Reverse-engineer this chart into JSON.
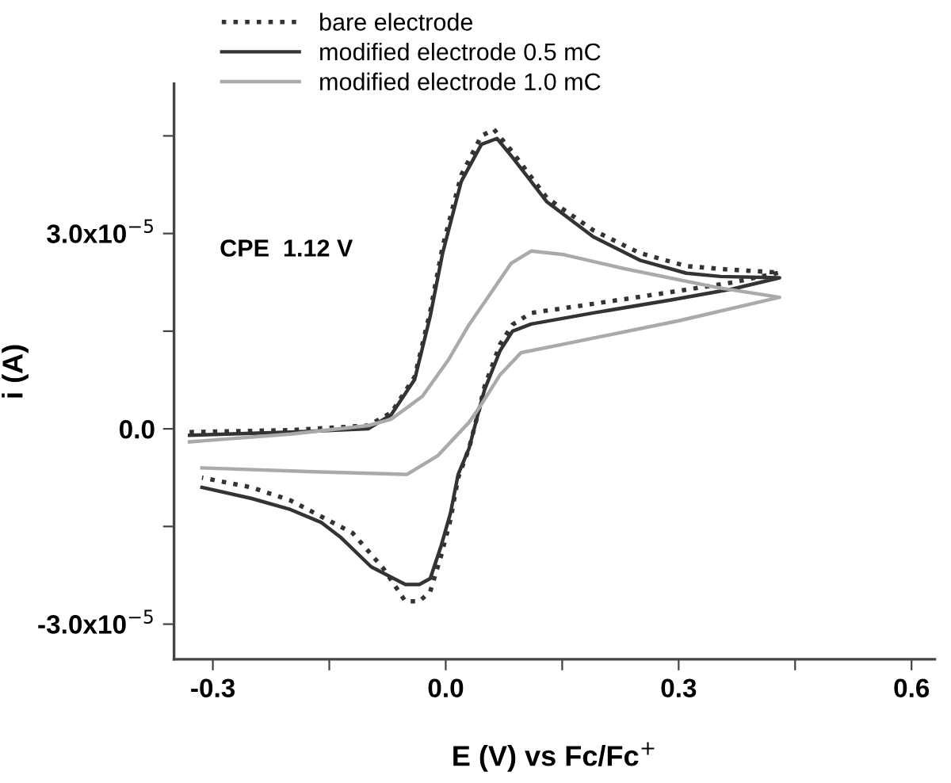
{
  "chart_data": {
    "type": "line",
    "xlabel": "E (V) vs Fc/Fc$^{+}$",
    "ylabel": "i (A)",
    "annotations": [
      "CPE  1.12 V"
    ],
    "xlim": [
      -0.35,
      0.63
    ],
    "ylim": [
      -3.54e-05,
      5.3e-05
    ],
    "xticks": [
      -0.3,
      {
        "value": -0.15,
        "label": null
      },
      {
        "value": 0,
        "label": "0.0"
      },
      {
        "value": 0.15,
        "label": null
      },
      0.3,
      {
        "value": 0.45,
        "label": null
      },
      0.6
    ],
    "yticks": [
      {
        "value": -3e-05,
        "label": "-3.0x10$^{−5}$"
      },
      {
        "value": -1.5e-05,
        "label": null
      },
      {
        "value": 0,
        "label": "0.0"
      },
      {
        "value": 1.5e-05,
        "label": null
      },
      {
        "value": 3e-05,
        "label": "3.0x10$^{−5}$"
      },
      {
        "value": 4.5e-05,
        "label": null
      }
    ],
    "grid": false,
    "legend": "top left",
    "marker": "none",
    "series": [
      {
        "name": "bare electrode",
        "color": "#333333",
        "line_style": "dotted",
        "x": [
          -0.33,
          -0.2,
          -0.1,
          -0.07,
          -0.04,
          -0.02,
          -0.004,
          0.02,
          0.046,
          0.062,
          0.086,
          0.13,
          0.19,
          0.25,
          0.31,
          0.36,
          0.43,
          0.37,
          0.29,
          0.19,
          0.11,
          0.086,
          0.07,
          0.05,
          0.044,
          0.03,
          0.016,
          0.006,
          -0.006,
          -0.02,
          -0.034,
          -0.052,
          -0.08,
          -0.12,
          -0.16,
          -0.2,
          -0.25,
          -0.314
        ],
        "values": [
          -5e-07,
          -2e-07,
          5e-07,
          2.5e-06,
          8e-06,
          1.8e-05,
          2.8e-05,
          3.9e-05,
          4.5e-05,
          4.6e-05,
          4.25e-05,
          3.55e-05,
          3.05e-05,
          2.7e-05,
          2.5e-05,
          2.45e-05,
          2.4e-05,
          2.25e-05,
          2.1e-05,
          1.92e-05,
          1.78e-05,
          1.6e-05,
          1.3e-05,
          6.5e-06,
          3.5e-06,
          -3e-06,
          -7.5e-06,
          -1.4e-05,
          -1.95e-05,
          -2.5e-05,
          -2.65e-05,
          -2.65e-05,
          -2.15e-05,
          -1.6e-05,
          -1.35e-05,
          -1.1e-05,
          -9e-06,
          -7.5e-06
        ]
      },
      {
        "name": "modified electrode 0.5 mC",
        "color": "#333333",
        "line_style": "solid",
        "x": [
          -0.33,
          -0.2,
          -0.1,
          -0.07,
          -0.04,
          -0.02,
          -0.004,
          0.02,
          0.046,
          0.066,
          0.086,
          0.13,
          0.19,
          0.25,
          0.31,
          0.354,
          0.43,
          0.37,
          0.29,
          0.19,
          0.11,
          0.086,
          0.07,
          0.05,
          0.044,
          0.03,
          0.016,
          0.006,
          -0.006,
          -0.02,
          -0.034,
          -0.052,
          -0.096,
          -0.136,
          -0.16,
          -0.2,
          -0.25,
          -0.314
        ],
        "values": [
          -1e-06,
          -5e-07,
          0.0,
          2.2e-06,
          7.6e-06,
          1.73e-05,
          2.7e-05,
          3.8e-05,
          4.37e-05,
          4.46e-05,
          4.17e-05,
          3.49e-05,
          2.95e-05,
          2.59e-05,
          2.39e-05,
          2.34e-05,
          2.32e-05,
          2.15e-05,
          1.98e-05,
          1.78e-05,
          1.61e-05,
          1.5e-05,
          1.2e-05,
          6e-06,
          3.4e-06,
          -3e-06,
          -7e-06,
          -1.3e-05,
          -1.8e-05,
          -2.3e-05,
          -2.39e-05,
          -2.39e-05,
          -2.12e-05,
          -1.66e-05,
          -1.44e-05,
          -1.24e-05,
          -1.07e-05,
          -9e-06
        ]
      },
      {
        "name": "modified electrode 1.0 mC",
        "color": "#aaaaaa",
        "line_style": "solid",
        "x": [
          -0.33,
          -0.2,
          -0.1,
          -0.07,
          -0.03,
          0.004,
          0.03,
          0.056,
          0.084,
          0.11,
          0.15,
          0.23,
          0.35,
          0.43,
          0.3,
          0.16,
          0.097,
          0.07,
          0.044,
          0.03,
          -0.01,
          -0.05,
          -0.17,
          -0.314
        ],
        "values": [
          -2e-06,
          -8e-07,
          5e-07,
          1.5e-06,
          5e-06,
          1.07e-05,
          1.6e-05,
          2.05e-05,
          2.54e-05,
          2.73e-05,
          2.68e-05,
          2.46e-05,
          2.17e-05,
          2.02e-05,
          1.66e-05,
          1.32e-05,
          1.17e-05,
          8.3e-06,
          3.4e-06,
          1e-06,
          -4.1e-06,
          -7e-06,
          -6.6e-06,
          -6e-06
        ]
      }
    ]
  }
}
